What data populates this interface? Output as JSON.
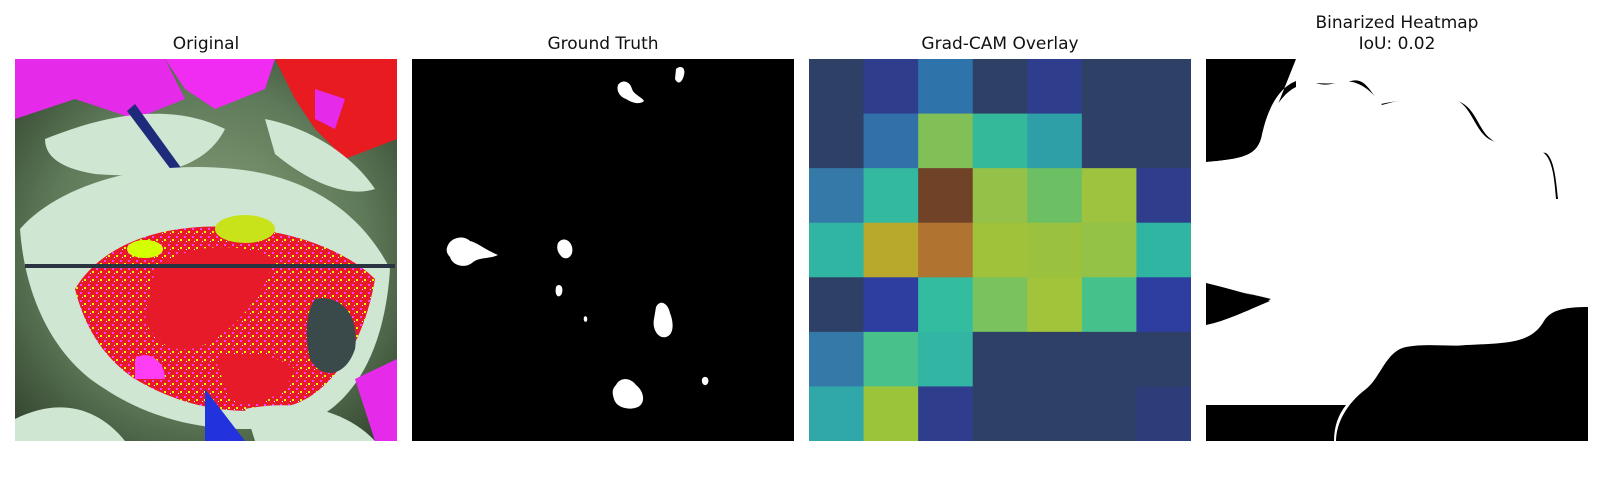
{
  "panels": [
    {
      "title": "Original"
    },
    {
      "title": "Ground Truth"
    },
    {
      "title": "Grad-CAM Overlay"
    },
    {
      "title": "Binarized Heatmap\nIoU: 0.02"
    }
  ],
  "gradcam_grid_colors": [
    [
      "#2f4066",
      "#2e3d8c",
      "#2f73ab",
      "#2f4066",
      "#2e3d8c",
      "#2f4066",
      "#2f4066"
    ],
    [
      "#2f4066",
      "#3270aa",
      "#80c057",
      "#34b99a",
      "#2e9fa6",
      "#2f4066",
      "#2f4066"
    ],
    [
      "#3479a8",
      "#33b99f",
      "#704228",
      "#95c148",
      "#6cbf63",
      "#9ec33e",
      "#2e3d8c"
    ],
    [
      "#30b5a2",
      "#b8a82c",
      "#b07330",
      "#a0c23a",
      "#9ac23f",
      "#93c247",
      "#30b5a2"
    ],
    [
      "#2f4066",
      "#2e3ea0",
      "#34bca0",
      "#79c25e",
      "#a1c43a",
      "#45c28b",
      "#2e3ea0"
    ],
    [
      "#3479a8",
      "#49c18b",
      "#32b5a3",
      "#2f4066",
      "#2f4066",
      "#2f4066",
      "#2f4066"
    ],
    [
      "#30a8aa",
      "#9cc43a",
      "#2e3d8c",
      "#2f4066",
      "#2f4066",
      "#2f4066",
      "#2e3d7a"
    ]
  ]
}
